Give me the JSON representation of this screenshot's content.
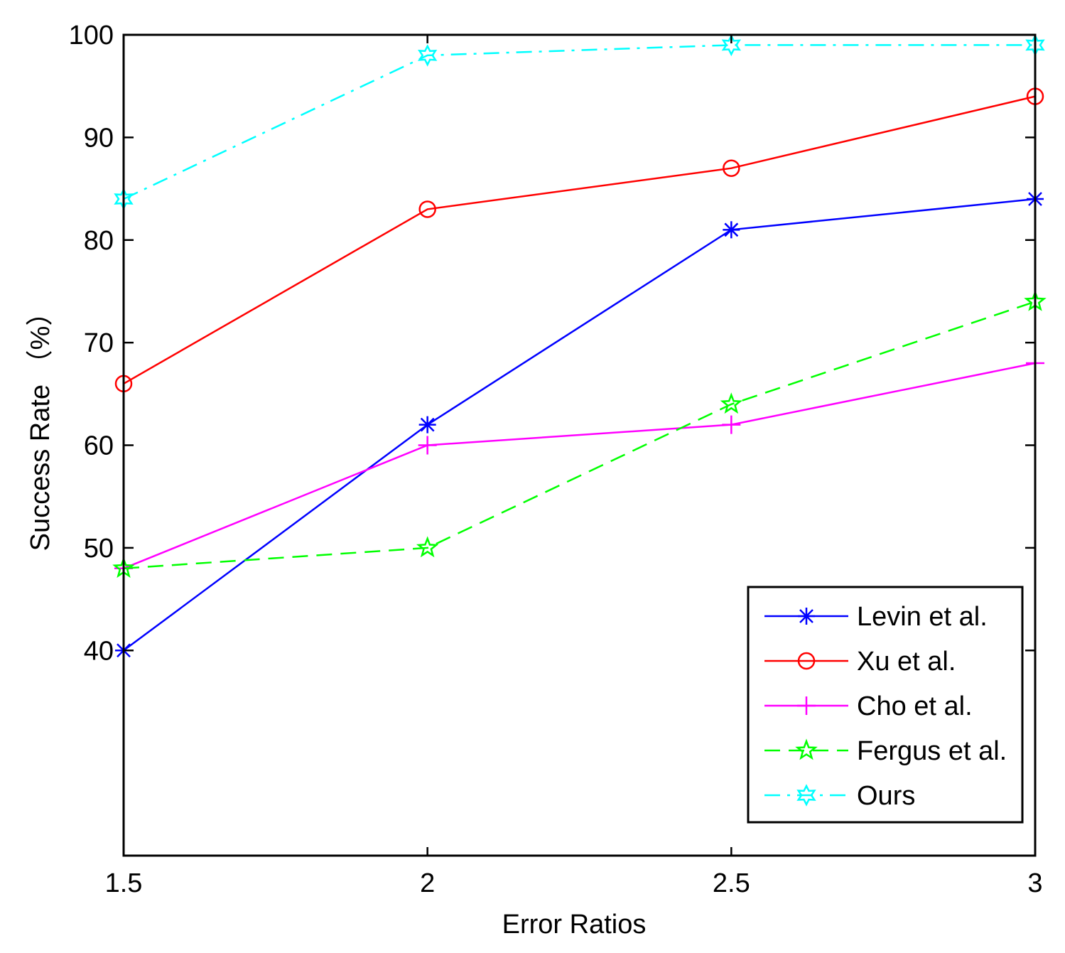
{
  "chart_data": {
    "type": "line",
    "xlabel": "Error Ratios",
    "ylabel": "Success Rate （%）",
    "x": [
      1.5,
      2,
      2.5,
      3
    ],
    "xlim": [
      1.5,
      3
    ],
    "ylim": [
      20,
      100
    ],
    "xticks": [
      "1.5",
      "2",
      "2.5",
      "3"
    ],
    "yticks": [
      {
        "value": 40,
        "label": "40"
      },
      {
        "value": 50,
        "label": "50"
      },
      {
        "value": 60,
        "label": "60"
      },
      {
        "value": 70,
        "label": "70"
      },
      {
        "value": 80,
        "label": "80"
      },
      {
        "value": 90,
        "label": "90"
      },
      {
        "value": 100,
        "label": "100"
      }
    ],
    "grid": false,
    "legend_position": "lower-right",
    "series": [
      {
        "name": "Levin et al.",
        "values": [
          40,
          62,
          81,
          84
        ],
        "color": "#0000ff",
        "dash": "solid",
        "marker": "asterisk"
      },
      {
        "name": "Xu et al.",
        "values": [
          66,
          83,
          87,
          94
        ],
        "color": "#ff0000",
        "dash": "solid",
        "marker": "circle"
      },
      {
        "name": "Cho et al.",
        "values": [
          48,
          60,
          62,
          68
        ],
        "color": "#ff00ff",
        "dash": "solid",
        "marker": "plus"
      },
      {
        "name": "Fergus et al.",
        "values": [
          48,
          50,
          64,
          74
        ],
        "color": "#00ff00",
        "dash": "dashed",
        "marker": "pentagram"
      },
      {
        "name": "Ours",
        "values": [
          84,
          98,
          99,
          99
        ],
        "color": "#00ffff",
        "dash": "dashdot",
        "marker": "hexagram"
      }
    ]
  }
}
